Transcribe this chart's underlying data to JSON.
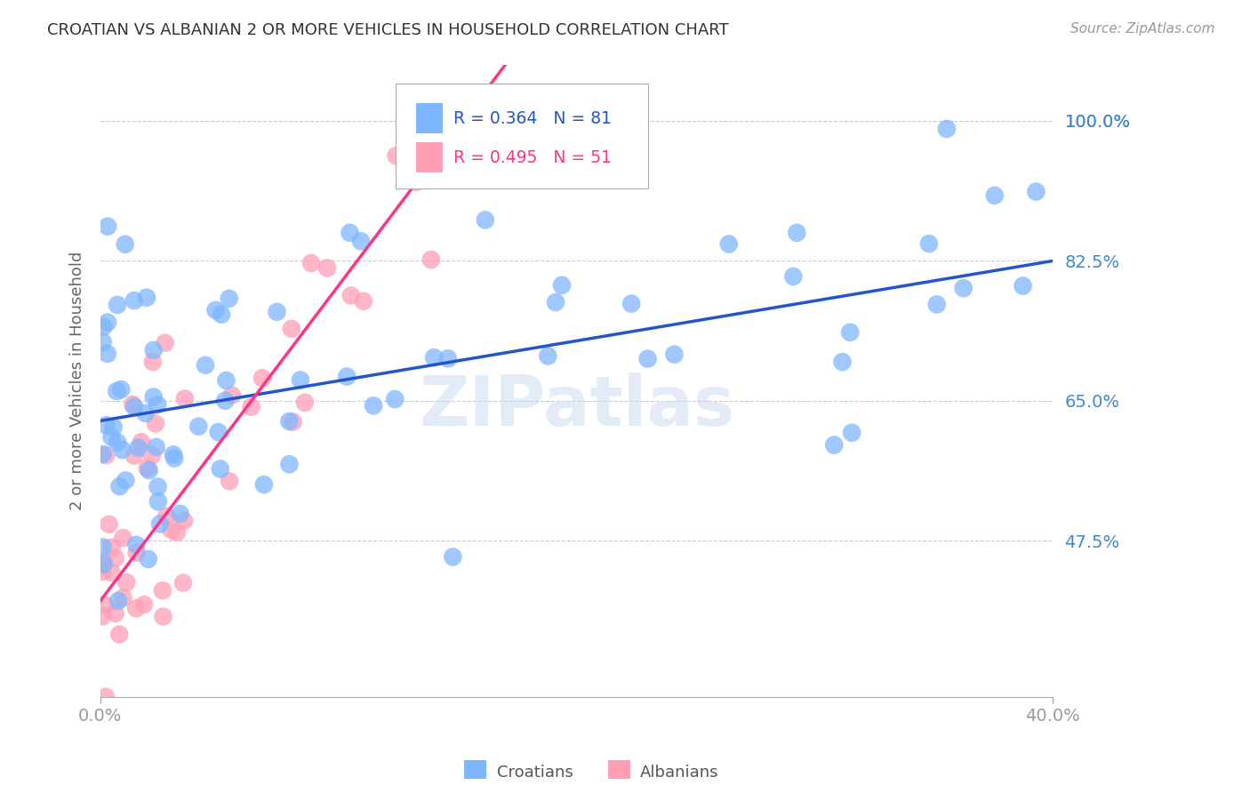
{
  "title": "CROATIAN VS ALBANIAN 2 OR MORE VEHICLES IN HOUSEHOLD CORRELATION CHART",
  "source": "Source: ZipAtlas.com",
  "ylabel": "2 or more Vehicles in Household",
  "xlim": [
    0.0,
    40.0
  ],
  "ylim": [
    28.0,
    107.0
  ],
  "yticks": [
    47.5,
    65.0,
    82.5,
    100.0
  ],
  "xtick_positions": [
    0.0,
    40.0
  ],
  "xtick_labels": [
    "0.0%",
    "40.0%"
  ],
  "croatian_color": "#7EB6FF",
  "albanian_color": "#FF9EB5",
  "line_croatian_color": "#2255CC",
  "line_albanian_color": "#FF3388",
  "legend_R_croatian": "R = 0.364",
  "legend_N_croatian": "N = 81",
  "legend_R_albanian": "R = 0.495",
  "legend_N_albanian": "N = 51",
  "watermark": "ZIPatlas",
  "background_color": "#ffffff",
  "grid_color": "#cccccc",
  "title_color": "#333333",
  "axis_tick_color": "#4488CC",
  "cro_line_x0": 0.0,
  "cro_line_y0": 62.5,
  "cro_line_x1": 40.0,
  "cro_line_y1": 82.5,
  "alb_line_x0": 0.0,
  "alb_line_y0": 40.0,
  "alb_line_x1": 17.0,
  "alb_line_y1": 107.0
}
